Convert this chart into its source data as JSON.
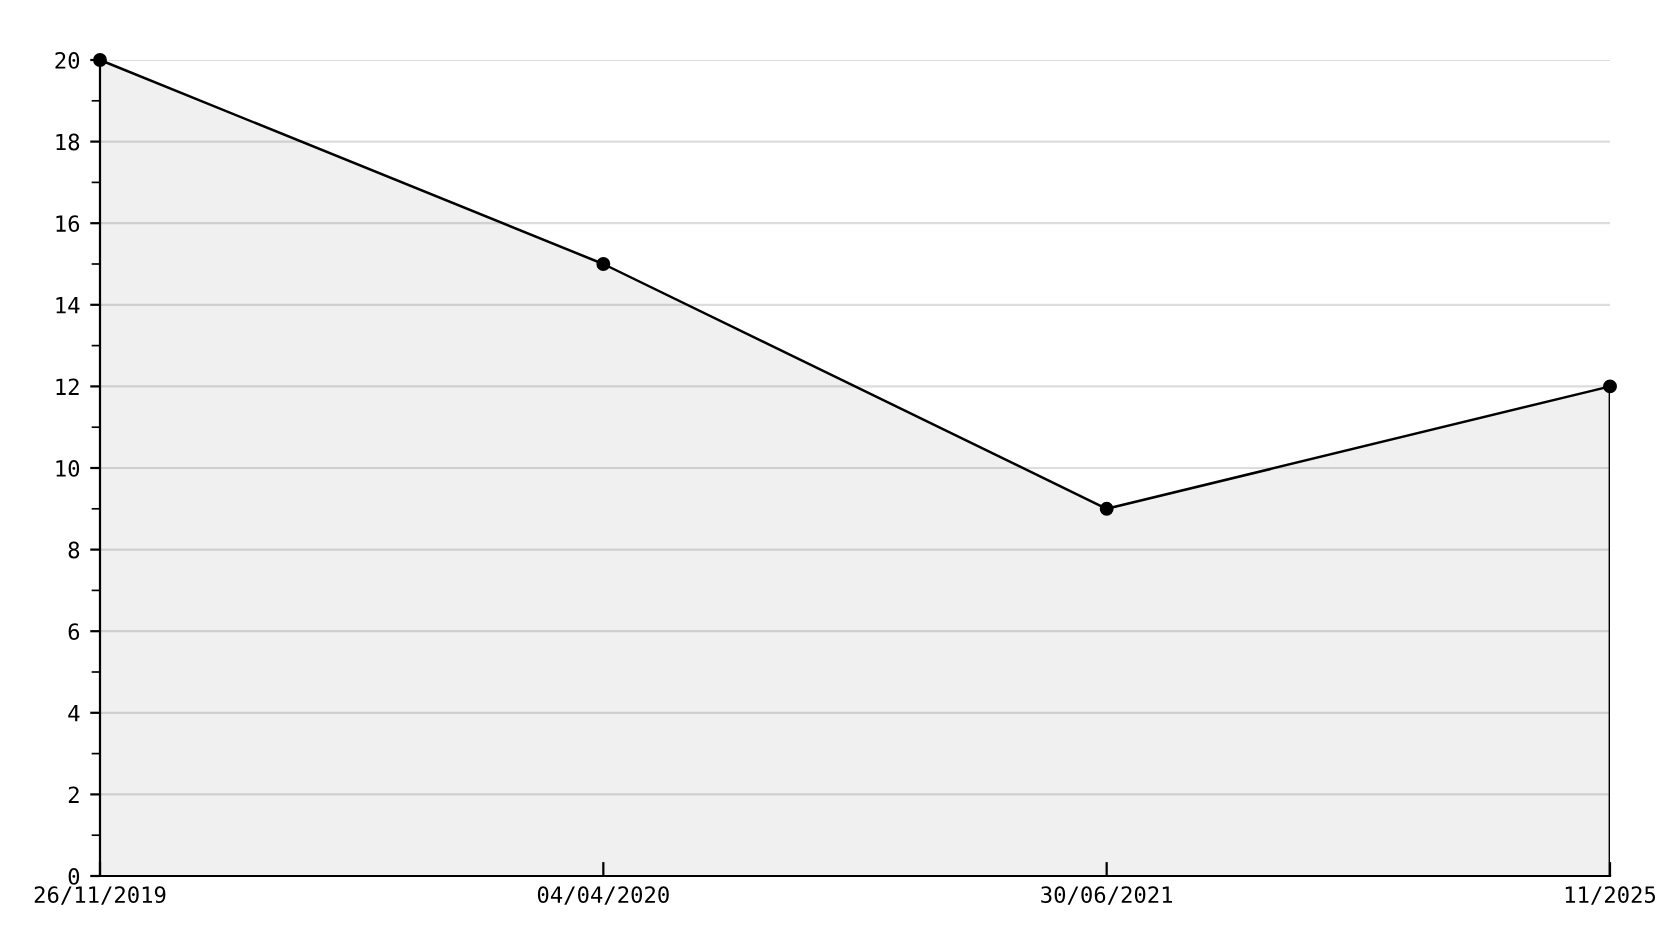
{
  "chart_data": {
    "type": "area",
    "categories": [
      "26/11/2019",
      "04/04/2020",
      "30/06/2021",
      "11/2025"
    ],
    "series": [
      {
        "color": "#000000",
        "values": [
          20,
          15,
          9,
          12
        ]
      }
    ],
    "ylim": [
      0,
      20
    ],
    "yticks": [
      0,
      {
        "value": 1,
        "label": null
      },
      2,
      {
        "value": 3,
        "label": null
      },
      4,
      {
        "value": 5,
        "label": null
      },
      6,
      {
        "value": 7,
        "label": null
      },
      8,
      {
        "value": 9,
        "label": null
      },
      10,
      {
        "value": 11,
        "label": null
      },
      12,
      {
        "value": 13,
        "label": null
      },
      14,
      {
        "value": 15,
        "label": null
      },
      16,
      {
        "value": 17,
        "label": null
      },
      18,
      {
        "value": 19,
        "label": null
      },
      20
    ],
    "grid": "y",
    "marker": "circle",
    "line_style": "solid",
    "legend": false
  }
}
